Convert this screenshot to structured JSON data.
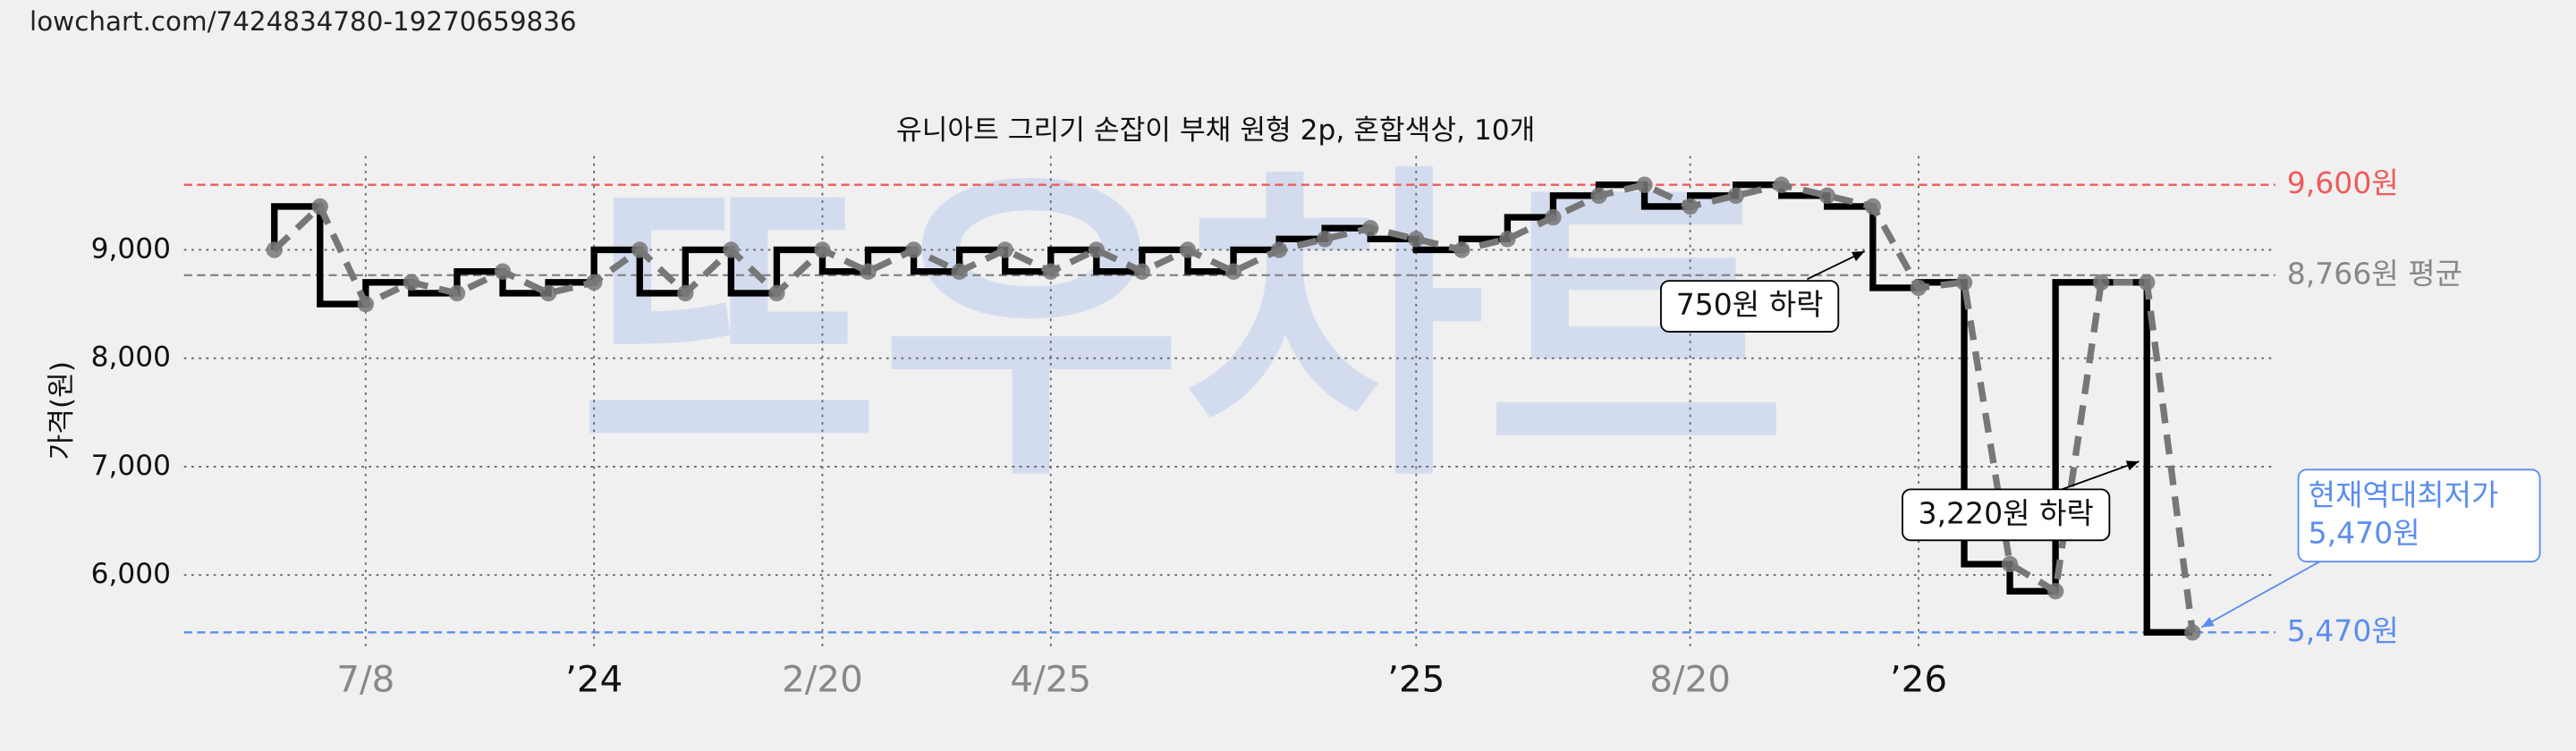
{
  "page": {
    "url": "lowchart.com/7424834780-19270659836"
  },
  "chart_data": {
    "type": "step",
    "title": "유니아트 그리기 손잡이 부채 원형 2p, 혼합색상, 10개",
    "watermark": "뜨우차트",
    "y_label": "가격(원)",
    "categories": [
      null,
      null,
      "7/8",
      null,
      null,
      null,
      null,
      "’24",
      null,
      null,
      null,
      null,
      "2/20",
      null,
      null,
      null,
      null,
      "4/25",
      null,
      null,
      null,
      null,
      null,
      null,
      null,
      "’25",
      null,
      null,
      null,
      null,
      null,
      "8/20",
      null,
      null,
      null,
      null,
      "’26",
      null,
      null,
      null,
      null,
      null,
      null
    ],
    "values": [
      9000,
      9400,
      8500,
      8700,
      8600,
      8800,
      8600,
      8700,
      9000,
      8600,
      9000,
      8600,
      9000,
      8800,
      9000,
      8800,
      9000,
      8800,
      9000,
      8800,
      9000,
      8800,
      9000,
      9100,
      9200,
      9100,
      9000,
      9100,
      9300,
      9500,
      9600,
      9400,
      9500,
      9600,
      9500,
      9400,
      8650,
      8700,
      6100,
      5850,
      8700,
      8700,
      5470
    ],
    "step_color": "#000000",
    "line_color": "#777777",
    "ylim": [
      5320,
      9790
    ],
    "yticks": [
      {
        "value": 6000,
        "label": "6,000"
      },
      {
        "value": 7000,
        "label": "7,000"
      },
      {
        "value": 8000,
        "label": "8,000"
      },
      {
        "value": 9000,
        "label": "9,000"
      }
    ],
    "grid": true,
    "reference_lines": [
      {
        "value": 9600,
        "label": "9,600원",
        "color": "#f05a5a"
      },
      {
        "value": 8766,
        "label": "8,766원 평균",
        "color": "#888888"
      },
      {
        "value": 5470,
        "label": "5,470원",
        "color": "#5b8def"
      }
    ],
    "annotations": [
      {
        "text": [
          "750원 하락"
        ]
      },
      {
        "text": [
          "3,220원 하락"
        ]
      },
      {
        "text": [
          "현재역대최저가",
          "5,470원"
        ]
      }
    ]
  }
}
